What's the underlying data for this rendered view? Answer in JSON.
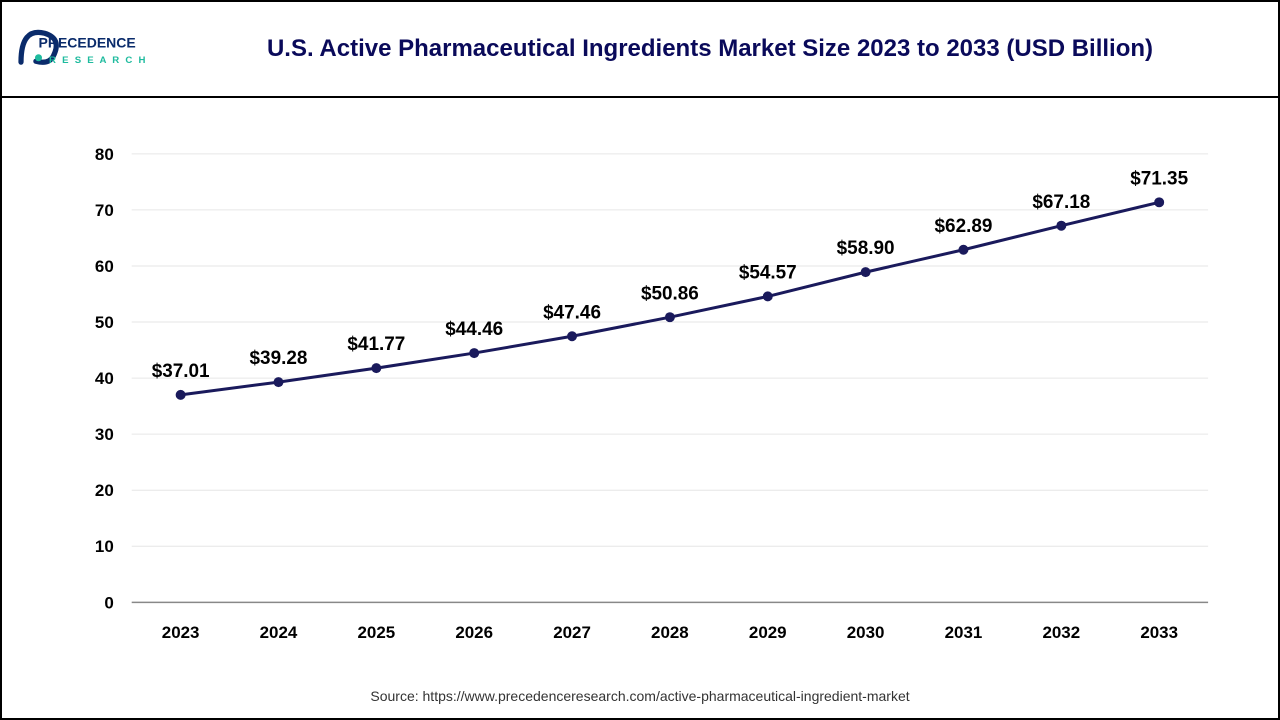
{
  "header": {
    "logo_top": "PRECEDENCE",
    "logo_bottom": "R E S E A R C H",
    "title": "U.S. Active Pharmaceutical Ingredients Market Size 2023 to 2033 (USD Billion)",
    "title_color": "#0a0a5a",
    "title_fontsize": 24
  },
  "chart": {
    "type": "line",
    "categories": [
      "2023",
      "2024",
      "2025",
      "2026",
      "2027",
      "2028",
      "2029",
      "2030",
      "2031",
      "2032",
      "2033"
    ],
    "values": [
      37.01,
      39.28,
      41.77,
      44.46,
      47.46,
      50.86,
      54.57,
      58.9,
      62.89,
      67.18,
      71.35
    ],
    "labels": [
      "$37.01",
      "$39.28",
      "$41.77",
      "$44.46",
      "$47.46",
      "$50.86",
      "$54.57",
      "$58.90",
      "$62.89",
      "$67.18",
      "$71.35"
    ],
    "ylim": [
      0,
      80
    ],
    "ytick_step": 10,
    "yticks": [
      0,
      10,
      20,
      30,
      40,
      50,
      60,
      70,
      80
    ],
    "line_color": "#1a1a5c",
    "line_width": 3,
    "marker_style": "circle",
    "marker_size": 5,
    "marker_fill": "#1a1a5c",
    "background_color": "#ffffff",
    "grid_color": "#e6e6e6",
    "axis_tick_fontsize": 17,
    "data_label_fontsize": 19,
    "data_label_weight": 700
  },
  "source": {
    "prefix": "Source: ",
    "url": "https://www.precedenceresearch.com/active-pharmaceutical-ingredient-market",
    "fontsize": 14
  }
}
